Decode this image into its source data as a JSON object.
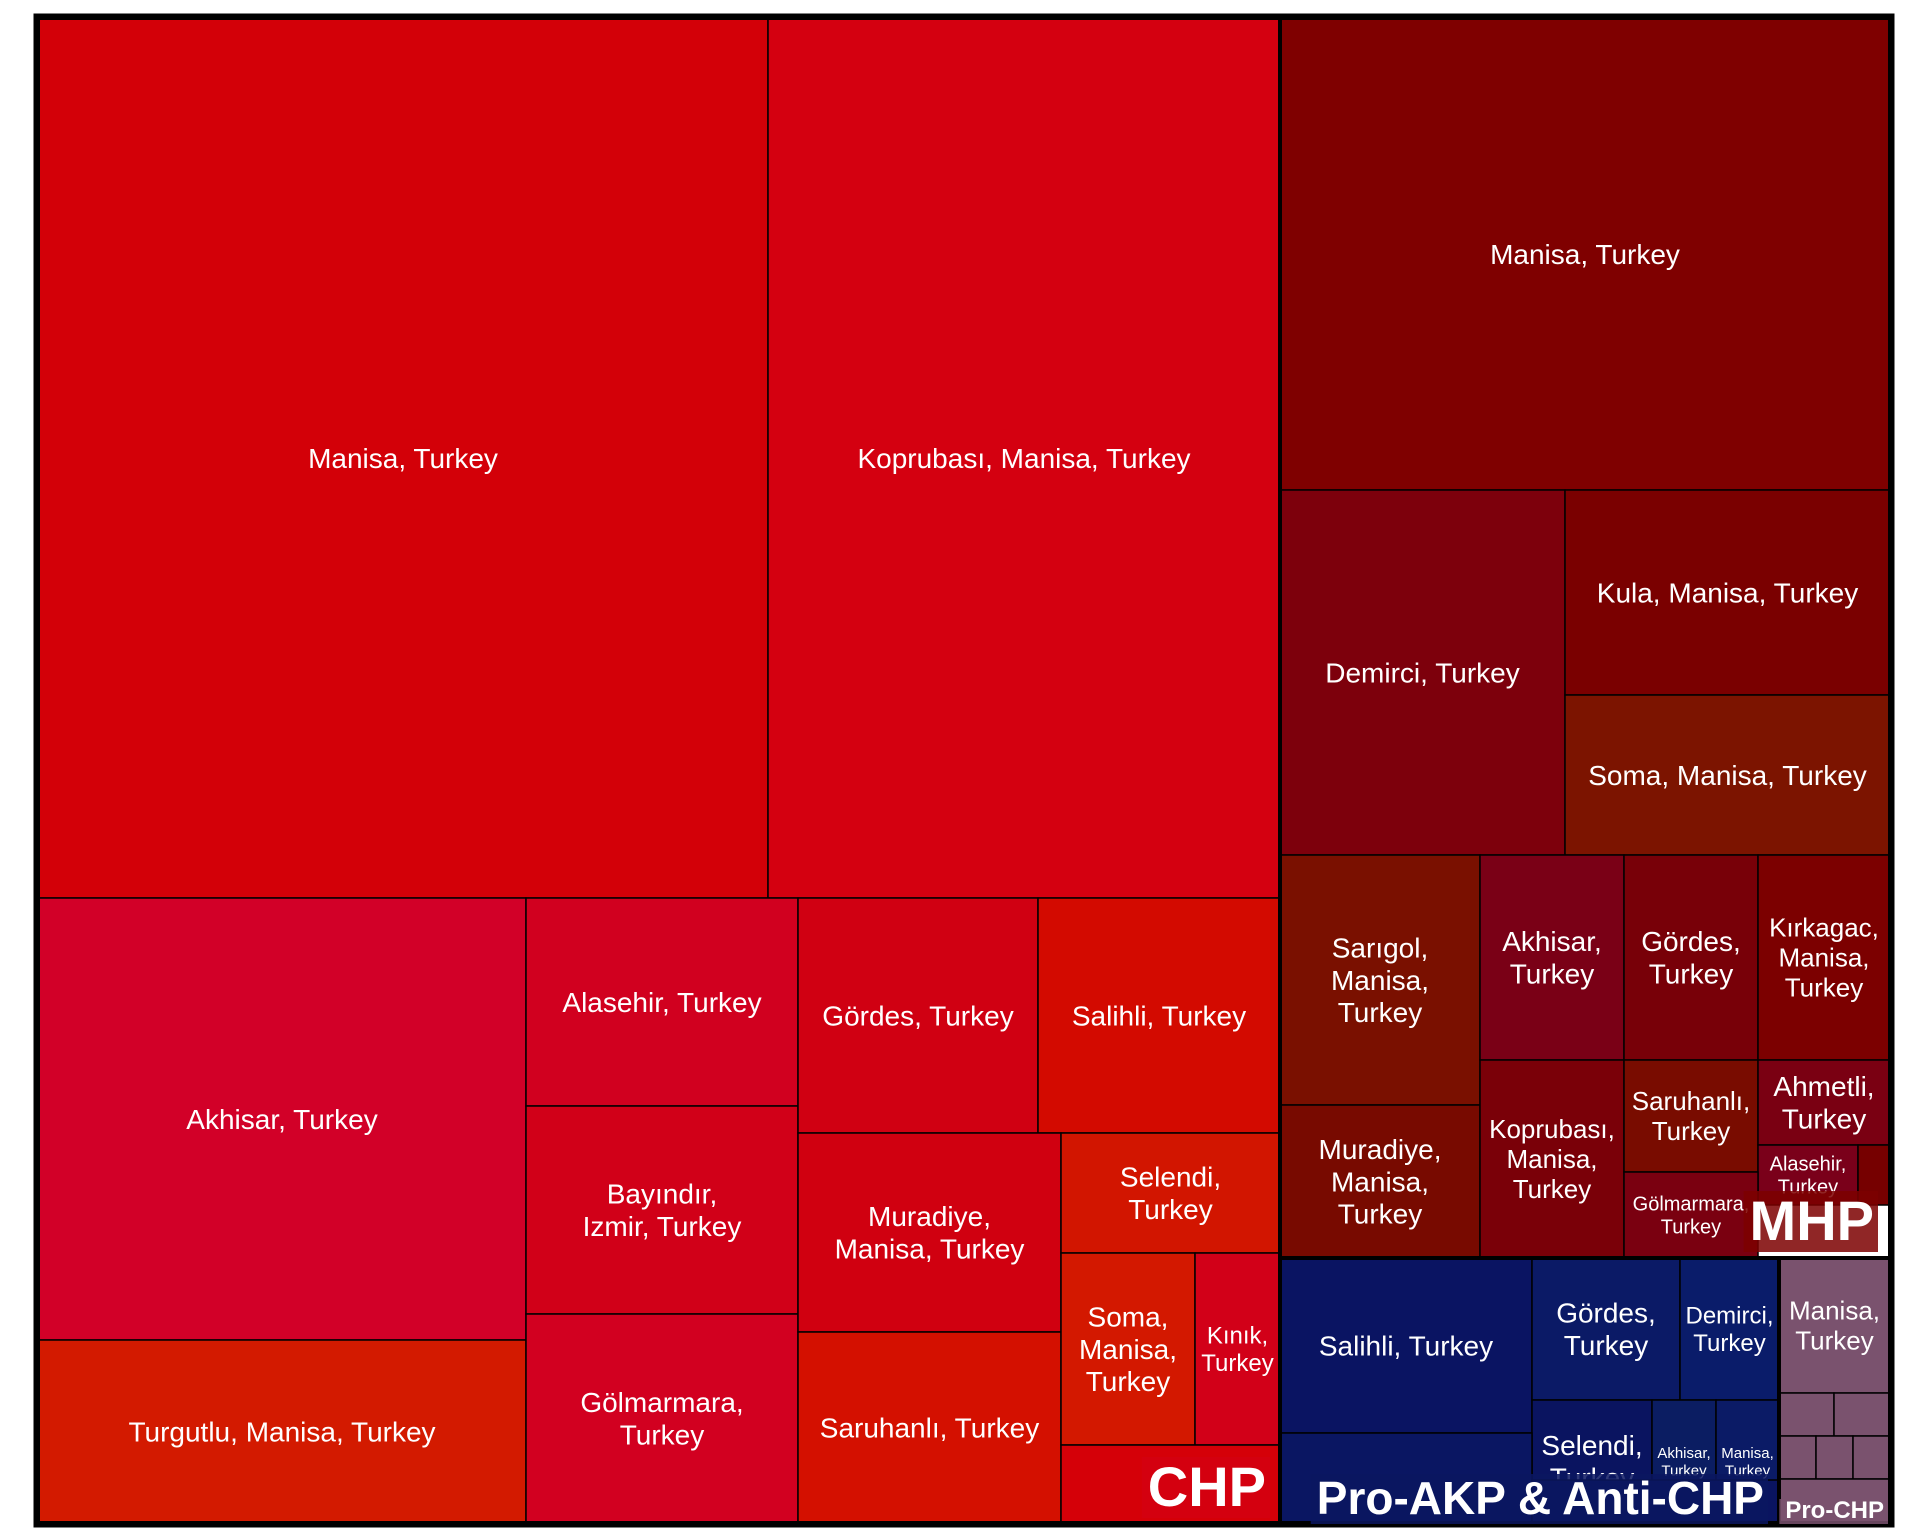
{
  "chart_data": {
    "type": "treemap",
    "groups": [
      {
        "name": "CHP",
        "color": "#d40010",
        "cells": [
          {
            "label": "Manisa, Turkey",
            "color": "#d30008"
          },
          {
            "label": "Koprubası, Manisa, Turkey",
            "color": "#d40010"
          },
          {
            "label": "Akhisar, Turkey",
            "color": "#d20028"
          },
          {
            "label": "Turgutlu, Manisa, Turkey",
            "color": "#d31a00"
          },
          {
            "label": "Alasehir, Turkey",
            "color": "#d1001f"
          },
          {
            "label": "Bayındır, Izmir, Turkey",
            "color": "#d10018"
          },
          {
            "label": "Gölmarmara, Turkey",
            "color": "#d20020"
          },
          {
            "label": "Gördes, Turkey",
            "color": "#d00012"
          },
          {
            "label": "Salihli, Turkey",
            "color": "#d30a00"
          },
          {
            "label": "Muradiye, Manisa, Turkey",
            "color": "#d00010"
          },
          {
            "label": "Saruhanlı, Turkey",
            "color": "#d41000"
          },
          {
            "label": "Selendi, Turkey",
            "color": "#d21500"
          },
          {
            "label": "Soma, Manisa, Turkey",
            "color": "#d31800"
          },
          {
            "label": "Kınık, Turkey",
            "color": "#d20018"
          },
          {
            "label": "",
            "color": "#d50008"
          }
        ]
      },
      {
        "name": "MHP",
        "color": "#7d0000",
        "cells": [
          {
            "label": "Manisa, Turkey",
            "color": "#7f0000"
          },
          {
            "label": "Demirci, Turkey",
            "color": "#7d000c"
          },
          {
            "label": "Kula, Manisa, Turkey",
            "color": "#7a0000"
          },
          {
            "label": "Soma, Manisa, Turkey",
            "color": "#7c1400"
          },
          {
            "label": "Sarıgol, Manisa, Turkey",
            "color": "#7a1000"
          },
          {
            "label": "Akhisar, Turkey",
            "color": "#7a0016"
          },
          {
            "label": "Gördes, Turkey",
            "color": "#780008"
          },
          {
            "label": "Kırkagac, Manisa, Turkey",
            "color": "#7c0000"
          },
          {
            "label": "Muradiye, Manisa, Turkey",
            "color": "#780a00"
          },
          {
            "label": "Koprubası, Manisa, Turkey",
            "color": "#7a0008"
          },
          {
            "label": "Saruhanlı, Turkey",
            "color": "#790c00"
          },
          {
            "label": "Ahmetli, Turkey",
            "color": "#7a0012"
          },
          {
            "label": "Alasehir, Turkey",
            "color": "#7a001a"
          },
          {
            "label": "Gölmarmara, Turkey",
            "color": "#7a0010"
          },
          {
            "label": "",
            "color": "#760000"
          }
        ]
      },
      {
        "name": "Pro-AKP & Anti-CHP",
        "color": "#0a1660",
        "cells": [
          {
            "label": "Salihli, Turkey",
            "color": "#0a1462"
          },
          {
            "label": "Gördes, Turkey",
            "color": "#0b1a66"
          },
          {
            "label": "Demirci, Turkey",
            "color": "#0a1c6a"
          },
          {
            "label": "Selendi, Turkey",
            "color": "#0a1460"
          },
          {
            "label": "Akhisar, Turkey",
            "color": "#0b1d62"
          },
          {
            "label": "Manisa, Turkey",
            "color": "#0b1b66"
          },
          {
            "label": "",
            "color": "#0a1662"
          },
          {
            "label": "",
            "color": "#0a1460"
          }
        ]
      },
      {
        "name": "Pro-CHP",
        "color": "#7a526e",
        "cells": [
          {
            "label": "Manisa, Turkey",
            "color": "#7a526e"
          },
          {
            "label": "",
            "color": "#7a526e"
          },
          {
            "label": "",
            "color": "#7a526e"
          },
          {
            "label": "",
            "color": "#7a526e"
          },
          {
            "label": "",
            "color": "#7a526e"
          },
          {
            "label": "",
            "color": "#7a526e"
          },
          {
            "label": "",
            "color": "#7a526e"
          }
        ]
      }
    ]
  }
}
